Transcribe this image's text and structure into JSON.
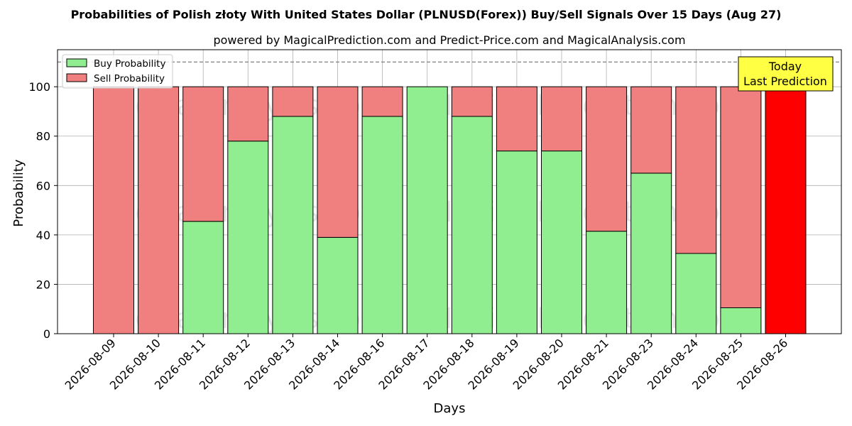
{
  "chart_data": {
    "type": "bar",
    "stacked": true,
    "title": "Probabilities of Polish złoty With United States Dollar (PLNUSD(Forex)) Buy/Sell Signals Over 15 Days (Aug 27)",
    "subtitle": "powered by MagicalPrediction.com and Predict-Price.com and MagicalAnalysis.com",
    "xlabel": "Days",
    "ylabel": "Probability",
    "ylim": [
      0,
      115
    ],
    "yticks": [
      0,
      20,
      40,
      60,
      80,
      100
    ],
    "reference_line": 110,
    "grid": true,
    "legend_placement": "top-left",
    "categories": [
      "2026-08-09",
      "2026-08-10",
      "2026-08-11",
      "2026-08-12",
      "2026-08-13",
      "2026-08-14",
      "2026-08-16",
      "2026-08-17",
      "2026-08-18",
      "2026-08-19",
      "2026-08-20",
      "2026-08-21",
      "2026-08-23",
      "2026-08-24",
      "2026-08-25",
      "2026-08-26"
    ],
    "series": [
      {
        "name": "Buy Probability",
        "color": "#90ee90",
        "values": [
          0,
          0,
          45.5,
          78,
          88,
          39,
          88,
          100,
          88,
          74,
          74,
          41.5,
          65,
          32.5,
          10.5,
          0
        ]
      },
      {
        "name": "Sell Probability",
        "color": "#f08080",
        "values": [
          100,
          100,
          54.5,
          22,
          12,
          61,
          12,
          0,
          12,
          26,
          26,
          58.5,
          35,
          67.5,
          89.5,
          0
        ]
      }
    ],
    "today_bar": {
      "index": 15,
      "value": 100,
      "color": "#ff0000"
    },
    "annotation": {
      "lines": [
        "Today",
        "Last Prediction"
      ],
      "color": "#ffff44"
    },
    "watermarks": [
      "MagicalAnalysis.com",
      "MagicalPrediction.com"
    ]
  }
}
